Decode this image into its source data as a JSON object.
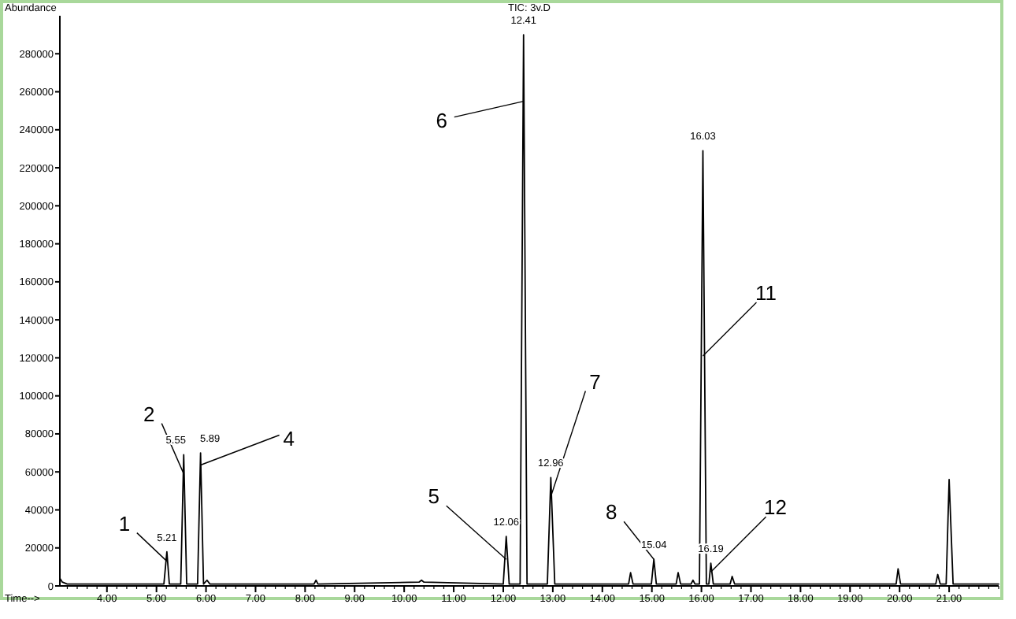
{
  "chart_data": {
    "type": "line",
    "title": "TIC: 3v.D",
    "xlabel": "Time-->",
    "ylabel": "Abundance",
    "color": "#000000",
    "grid": false,
    "x": [
      3.05,
      3.1,
      3.2,
      4.5,
      5.15,
      5.21,
      5.26,
      5.49,
      5.55,
      5.61,
      5.83,
      5.89,
      5.95,
      6.02,
      6.08,
      8.18,
      8.22,
      8.26,
      10.3,
      10.35,
      10.4,
      12.0,
      12.06,
      12.12,
      12.34,
      12.41,
      12.48,
      12.89,
      12.96,
      13.04,
      14.53,
      14.57,
      14.62,
      14.99,
      15.04,
      15.09,
      15.49,
      15.53,
      15.58,
      15.79,
      15.83,
      15.87,
      15.96,
      16.03,
      16.1,
      16.15,
      16.19,
      16.24,
      16.58,
      16.62,
      16.67,
      19.93,
      19.97,
      20.02,
      20.73,
      20.77,
      20.82,
      20.94,
      21.0,
      21.08,
      22.0
    ],
    "values": [
      4000,
      2000,
      1000,
      1000,
      1000,
      18000,
      1000,
      1000,
      69000,
      1000,
      1000,
      70000,
      1000,
      3000,
      1000,
      1000,
      3000,
      1000,
      2000,
      3000,
      2000,
      1000,
      26000,
      1000,
      1000,
      290000,
      1000,
      1000,
      57000,
      1000,
      1000,
      7000,
      1000,
      1000,
      14000,
      1000,
      1000,
      7000,
      1000,
      1000,
      3000,
      1000,
      1000,
      229000,
      1000,
      1000,
      12000,
      1000,
      1000,
      5000,
      1000,
      1000,
      9000,
      1000,
      1000,
      6000,
      1000,
      1000,
      56000,
      1000,
      1000
    ],
    "xlim": [
      3.05,
      22
    ],
    "xticks": [
      {
        "value": 4,
        "label": "4.00"
      },
      {
        "value": 5,
        "label": "5.00"
      },
      {
        "value": 6,
        "label": "6.00"
      },
      {
        "value": 7,
        "label": "7.00"
      },
      {
        "value": 8,
        "label": "8.00"
      },
      {
        "value": 9,
        "label": "9.00"
      },
      {
        "value": 10,
        "label": "10.00"
      },
      {
        "value": 11,
        "label": "11.00"
      },
      {
        "value": 12,
        "label": "12.00"
      },
      {
        "value": 13,
        "label": "13.00"
      },
      {
        "value": 14,
        "label": "14.00"
      },
      {
        "value": 15,
        "label": "15.00"
      },
      {
        "value": 16,
        "label": "16.00"
      },
      {
        "value": 17,
        "label": "17.00"
      },
      {
        "value": 18,
        "label": "18.00"
      },
      {
        "value": 19,
        "label": "19.00"
      },
      {
        "value": 20,
        "label": "20.00"
      },
      {
        "value": 21,
        "label": "21.00"
      }
    ],
    "ylim": [
      0,
      300000
    ],
    "yticks": [
      0,
      20000,
      40000,
      60000,
      80000,
      100000,
      120000,
      140000,
      160000,
      180000,
      200000,
      220000,
      240000,
      260000,
      280000
    ],
    "annotations": [
      {
        "text": "5.21",
        "x": 5.21,
        "y": 18000
      },
      {
        "text": "5.55",
        "x": 5.55,
        "y": 69000
      },
      {
        "text": "5.89",
        "x": 5.89,
        "y": 70000
      },
      {
        "text": "12.06",
        "x": 12.06,
        "y": 26000
      },
      {
        "text": "12.41",
        "x": 12.41,
        "y": 290000
      },
      {
        "text": "12.96",
        "x": 12.96,
        "y": 57000
      },
      {
        "text": "15.04",
        "x": 15.04,
        "y": 14000
      },
      {
        "text": "16.03",
        "x": 16.03,
        "y": 229000
      },
      {
        "text": "16.19",
        "x": 16.19,
        "y": 12000
      },
      {
        "text": "1",
        "x": 5.21,
        "y": 13000
      },
      {
        "text": "2",
        "x": 5.55,
        "y": 59000
      },
      {
        "text": "4",
        "x": 5.89,
        "y": 63600
      },
      {
        "text": "5",
        "x": 12.06,
        "y": 14000
      },
      {
        "text": "6",
        "x": 12.41,
        "y": 255000
      },
      {
        "text": "7",
        "x": 12.96,
        "y": 47000
      },
      {
        "text": "8",
        "x": 15.04,
        "y": 14000
      },
      {
        "text": "11",
        "x": 16.03,
        "y": 121000
      },
      {
        "text": "12",
        "x": 16.19,
        "y": 7400
      }
    ]
  }
}
